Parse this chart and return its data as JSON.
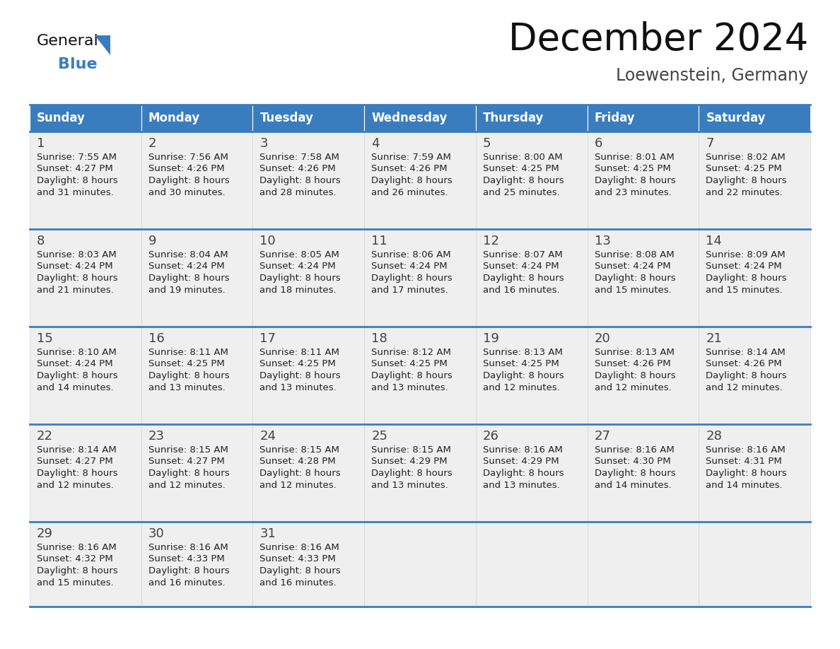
{
  "title": "December 2024",
  "subtitle": "Loewenstein, Germany",
  "days_of_week": [
    "Sunday",
    "Monday",
    "Tuesday",
    "Wednesday",
    "Thursday",
    "Friday",
    "Saturday"
  ],
  "header_bg": "#3a7dbf",
  "header_text_color": "#ffffff",
  "cell_bg": "#efefef",
  "cell_bg_white": "#ffffff",
  "border_color": "#3a7dbf",
  "grid_line_color": "#cccccc",
  "text_color": "#222222",
  "day_number_color": "#444444",
  "calendar_data": [
    [
      {
        "day": 1,
        "sunrise": "7:55 AM",
        "sunset": "4:27 PM",
        "daylight_extra": "31 minutes."
      },
      {
        "day": 2,
        "sunrise": "7:56 AM",
        "sunset": "4:26 PM",
        "daylight_extra": "30 minutes."
      },
      {
        "day": 3,
        "sunrise": "7:58 AM",
        "sunset": "4:26 PM",
        "daylight_extra": "28 minutes."
      },
      {
        "day": 4,
        "sunrise": "7:59 AM",
        "sunset": "4:26 PM",
        "daylight_extra": "26 minutes."
      },
      {
        "day": 5,
        "sunrise": "8:00 AM",
        "sunset": "4:25 PM",
        "daylight_extra": "25 minutes."
      },
      {
        "day": 6,
        "sunrise": "8:01 AM",
        "sunset": "4:25 PM",
        "daylight_extra": "23 minutes."
      },
      {
        "day": 7,
        "sunrise": "8:02 AM",
        "sunset": "4:25 PM",
        "daylight_extra": "22 minutes."
      }
    ],
    [
      {
        "day": 8,
        "sunrise": "8:03 AM",
        "sunset": "4:24 PM",
        "daylight_extra": "21 minutes."
      },
      {
        "day": 9,
        "sunrise": "8:04 AM",
        "sunset": "4:24 PM",
        "daylight_extra": "19 minutes."
      },
      {
        "day": 10,
        "sunrise": "8:05 AM",
        "sunset": "4:24 PM",
        "daylight_extra": "18 minutes."
      },
      {
        "day": 11,
        "sunrise": "8:06 AM",
        "sunset": "4:24 PM",
        "daylight_extra": "17 minutes."
      },
      {
        "day": 12,
        "sunrise": "8:07 AM",
        "sunset": "4:24 PM",
        "daylight_extra": "16 minutes."
      },
      {
        "day": 13,
        "sunrise": "8:08 AM",
        "sunset": "4:24 PM",
        "daylight_extra": "15 minutes."
      },
      {
        "day": 14,
        "sunrise": "8:09 AM",
        "sunset": "4:24 PM",
        "daylight_extra": "15 minutes."
      }
    ],
    [
      {
        "day": 15,
        "sunrise": "8:10 AM",
        "sunset": "4:24 PM",
        "daylight_extra": "14 minutes."
      },
      {
        "day": 16,
        "sunrise": "8:11 AM",
        "sunset": "4:25 PM",
        "daylight_extra": "13 minutes."
      },
      {
        "day": 17,
        "sunrise": "8:11 AM",
        "sunset": "4:25 PM",
        "daylight_extra": "13 minutes."
      },
      {
        "day": 18,
        "sunrise": "8:12 AM",
        "sunset": "4:25 PM",
        "daylight_extra": "13 minutes."
      },
      {
        "day": 19,
        "sunrise": "8:13 AM",
        "sunset": "4:25 PM",
        "daylight_extra": "12 minutes."
      },
      {
        "day": 20,
        "sunrise": "8:13 AM",
        "sunset": "4:26 PM",
        "daylight_extra": "12 minutes."
      },
      {
        "day": 21,
        "sunrise": "8:14 AM",
        "sunset": "4:26 PM",
        "daylight_extra": "12 minutes."
      }
    ],
    [
      {
        "day": 22,
        "sunrise": "8:14 AM",
        "sunset": "4:27 PM",
        "daylight_extra": "12 minutes."
      },
      {
        "day": 23,
        "sunrise": "8:15 AM",
        "sunset": "4:27 PM",
        "daylight_extra": "12 minutes."
      },
      {
        "day": 24,
        "sunrise": "8:15 AM",
        "sunset": "4:28 PM",
        "daylight_extra": "12 minutes."
      },
      {
        "day": 25,
        "sunrise": "8:15 AM",
        "sunset": "4:29 PM",
        "daylight_extra": "13 minutes."
      },
      {
        "day": 26,
        "sunrise": "8:16 AM",
        "sunset": "4:29 PM",
        "daylight_extra": "13 minutes."
      },
      {
        "day": 27,
        "sunrise": "8:16 AM",
        "sunset": "4:30 PM",
        "daylight_extra": "14 minutes."
      },
      {
        "day": 28,
        "sunrise": "8:16 AM",
        "sunset": "4:31 PM",
        "daylight_extra": "14 minutes."
      }
    ],
    [
      {
        "day": 29,
        "sunrise": "8:16 AM",
        "sunset": "4:32 PM",
        "daylight_extra": "15 minutes."
      },
      {
        "day": 30,
        "sunrise": "8:16 AM",
        "sunset": "4:33 PM",
        "daylight_extra": "16 minutes."
      },
      {
        "day": 31,
        "sunrise": "8:16 AM",
        "sunset": "4:33 PM",
        "daylight_extra": "16 minutes."
      },
      null,
      null,
      null,
      null
    ]
  ],
  "logo_text_general": "General",
  "logo_text_blue": "Blue",
  "logo_triangle_color": "#3a7dbf",
  "title_fontsize": 38,
  "subtitle_fontsize": 17,
  "header_fontsize": 12,
  "day_num_fontsize": 13,
  "info_fontsize": 9.5
}
